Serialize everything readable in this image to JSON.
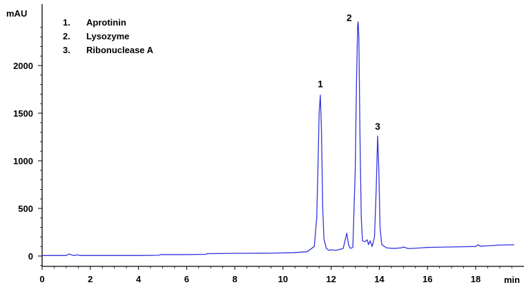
{
  "chart_data": {
    "type": "line",
    "title": "",
    "xlabel": "min",
    "ylabel": "mAU",
    "xlim": [
      0,
      19.6
    ],
    "ylim": [
      -100,
      2500
    ],
    "x_ticks": [
      0,
      2,
      4,
      6,
      8,
      10,
      12,
      14,
      16,
      18
    ],
    "x_tick_labels": [
      "0",
      "2",
      "4",
      "6",
      "8",
      "10",
      "12",
      "14",
      "16",
      "18"
    ],
    "y_ticks": [
      0,
      500,
      1000,
      1500,
      2000
    ],
    "y_tick_labels": [
      "0",
      "500",
      "1000",
      "1500",
      "2000"
    ],
    "grid": false,
    "legend_position": "top-left",
    "legend": [
      {
        "number": "1.",
        "name": "Aprotinin"
      },
      {
        "number": "2.",
        "name": "Lysozyme"
      },
      {
        "number": "3.",
        "name": "Ribonuclease A"
      }
    ],
    "annotations": [
      {
        "text": "1",
        "x": 11.55,
        "y": 1700
      },
      {
        "text": "2",
        "x": 13.12,
        "y": 2460
      },
      {
        "text": "3",
        "x": 13.93,
        "y": 1260
      }
    ],
    "colors": {
      "trace": "#3333dd",
      "axis": "#000000"
    },
    "series": [
      {
        "x": [
          0,
          0.5,
          1.0,
          1.1,
          1.2,
          1.3,
          1.45,
          1.6,
          2.0,
          3.0,
          4.0,
          4.85,
          4.9,
          6.0,
          6.8,
          6.85,
          8.0,
          9.5,
          10.4,
          11.0,
          11.3,
          11.4,
          11.45,
          11.5,
          11.55,
          11.6,
          11.65,
          11.7,
          11.8,
          11.9,
          12.0,
          12.2,
          12.5,
          12.65,
          12.72,
          12.8,
          12.9,
          13.0,
          13.05,
          13.1,
          13.12,
          13.15,
          13.2,
          13.25,
          13.3,
          13.4,
          13.5,
          13.55,
          13.62,
          13.7,
          13.8,
          13.87,
          13.93,
          13.98,
          14.03,
          14.1,
          14.3,
          14.6,
          14.9,
          15.0,
          15.2,
          15.7,
          16.0,
          17.0,
          18.0,
          18.1,
          18.2,
          18.5,
          19.0,
          19.6
        ],
        "y": [
          5,
          5,
          5,
          20,
          15,
          5,
          12,
          5,
          5,
          5,
          5,
          8,
          15,
          15,
          18,
          25,
          28,
          30,
          35,
          45,
          100,
          400,
          900,
          1500,
          1690,
          1300,
          500,
          180,
          80,
          60,
          65,
          60,
          80,
          240,
          120,
          80,
          90,
          900,
          1800,
          2420,
          2460,
          2300,
          1200,
          400,
          160,
          150,
          170,
          120,
          160,
          100,
          200,
          700,
          1260,
          900,
          300,
          120,
          85,
          80,
          85,
          95,
          78,
          85,
          90,
          95,
          100,
          118,
          103,
          108,
          115,
          118
        ]
      }
    ]
  }
}
